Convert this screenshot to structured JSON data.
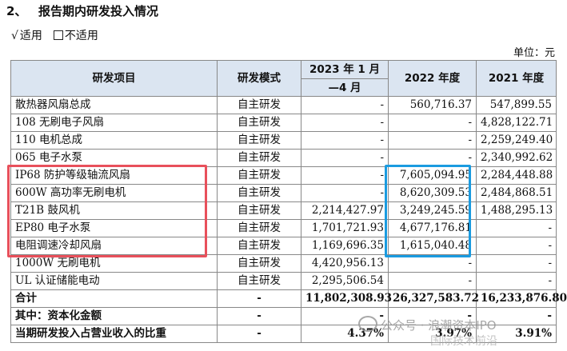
{
  "section": {
    "number": "2、",
    "title": "报告期内研发投入情况"
  },
  "options": {
    "checked_mark": "√",
    "checked_label": "适用",
    "unchecked_label": "不适用"
  },
  "unit": "单位：元",
  "table": {
    "headers": [
      "研发项目",
      "研发模式",
      "2023 年 1 月—4 月",
      "2022 年度",
      "2021 年度"
    ],
    "header_year2023_line1": "2023 年 1 月",
    "header_year2023_line2": "—4 月",
    "rows": [
      [
        "散热器风扇总成",
        "自主研发",
        "-",
        "560,716.37",
        "547,899.55"
      ],
      [
        "108 无刷电子风扇",
        "自主研发",
        "-",
        "-",
        "4,828,122.71"
      ],
      [
        "110 电机总成",
        "自主研发",
        "-",
        "-",
        "2,259,249.40"
      ],
      [
        "065 电子水泵",
        "自主研发",
        "-",
        "-",
        "2,340,992.62"
      ],
      [
        "IP68 防护等级轴流风扇",
        "自主研发",
        "-",
        "7,605,094.95",
        "2,284,448.88"
      ],
      [
        "600W 高功率无刷电机",
        "自主研发",
        "-",
        "8,620,309.53",
        "2,484,868.51"
      ],
      [
        "T21B 鼓风机",
        "自主研发",
        "2,214,427.97",
        "3,249,245.59",
        "1,488,295.13"
      ],
      [
        "EP80 电子水泵",
        "自主研发",
        "1,701,721.93",
        "4,677,176.81",
        "-"
      ],
      [
        "电阻调速冷却风扇",
        "自主研发",
        "1,169,696.35",
        "1,615,040.48",
        "-"
      ],
      [
        "1000W 无刷电机",
        "自主研发",
        "4,420,956.13",
        "-",
        "-"
      ],
      [
        "UL 认证储能电动",
        "自主研发",
        "2,295,506.54",
        "-",
        "-"
      ]
    ],
    "total_row": [
      "合计",
      "-",
      "11,802,308.93",
      "26,327,583.72",
      "16,233,876.80"
    ],
    "capitalized_row": [
      "其中：资本化金额",
      "-",
      "-",
      "-",
      "-"
    ],
    "ratio_row": [
      "当期研发投入占营业收入的比重",
      "-",
      "4.37%",
      "3.97%",
      "3.91%"
    ]
  },
  "watermark": {
    "line1": "公众号 · 浪潮资本IPO",
    "line2": "国际技术前沿"
  },
  "colors": {
    "header_bg": "#dbe5f1",
    "highlight_red": "#e8505b",
    "highlight_blue": "#1a9be0"
  }
}
